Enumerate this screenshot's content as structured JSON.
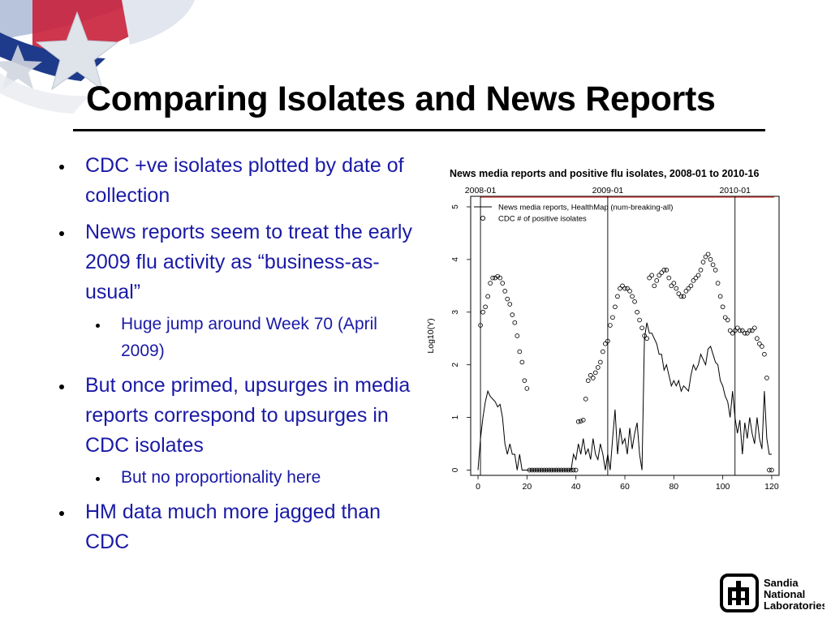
{
  "slide": {
    "title": "Comparing Isolates and News Reports",
    "bullets": [
      {
        "level": 1,
        "text": "CDC +ve isolates plotted by date of collection"
      },
      {
        "level": 1,
        "text": "News reports seem to treat the early 2009 flu activity as “business-as-usual”"
      },
      {
        "level": 2,
        "text": "Huge jump around Week 70 (April 2009)"
      },
      {
        "level": 1,
        "text": "But once primed, upsurges in media reports correspond to upsurges in CDC isolates"
      },
      {
        "level": 2,
        "text": "But no  proportionality here"
      },
      {
        "level": 1,
        "text": "HM data much more jagged than CDC"
      }
    ]
  },
  "logo": {
    "lines": [
      "Sandia",
      "National",
      "Laboratories"
    ]
  },
  "colors": {
    "bullet_text": "#1a1aa6",
    "title": "#000000",
    "chart_lines": "#000000",
    "chart_red_line": "#cc3333"
  },
  "chart_data": {
    "type": "line",
    "title": "News media reports and positive flu isolates, 2008-01 to 2010-16",
    "xlabel": "",
    "ylabel": "Log10(Y)",
    "xlim": [
      -3,
      123
    ],
    "ylim": [
      -0.1,
      5.2
    ],
    "x_ticks": [
      0,
      20,
      40,
      60,
      80,
      100,
      120
    ],
    "y_ticks": [
      0,
      1,
      2,
      3,
      4,
      5
    ],
    "grid": false,
    "legend_position": "top-left",
    "date_markers": [
      {
        "label": "2008-01",
        "x": 1
      },
      {
        "label": "2009-01",
        "x": 53
      },
      {
        "label": "2010-01",
        "x": 105
      }
    ],
    "series": [
      {
        "name": "News media reports, HealthMap (num-breaking-all)",
        "style": "line",
        "x": [
          0,
          1,
          2,
          3,
          4,
          5,
          6,
          7,
          8,
          9,
          10,
          11,
          12,
          13,
          14,
          15,
          16,
          17,
          18,
          19,
          20,
          21,
          22,
          23,
          24,
          25,
          26,
          27,
          28,
          29,
          30,
          31,
          32,
          33,
          34,
          35,
          36,
          37,
          38,
          39,
          40,
          41,
          42,
          43,
          44,
          45,
          46,
          47,
          48,
          49,
          50,
          51,
          52,
          53,
          54,
          55,
          56,
          57,
          58,
          59,
          60,
          61,
          62,
          63,
          64,
          65,
          66,
          67,
          68,
          69,
          70,
          71,
          72,
          73,
          74,
          75,
          76,
          77,
          78,
          79,
          80,
          81,
          82,
          83,
          84,
          85,
          86,
          87,
          88,
          89,
          90,
          91,
          92,
          93,
          94,
          95,
          96,
          97,
          98,
          99,
          100,
          101,
          102,
          103,
          104,
          105,
          106,
          107,
          108,
          109,
          110,
          111,
          112,
          113,
          114,
          115,
          116,
          117,
          118,
          119,
          120
        ],
        "values": [
          0,
          0.6,
          1.0,
          1.3,
          1.5,
          1.4,
          1.35,
          1.3,
          1.2,
          1.25,
          1.0,
          0.5,
          0.3,
          0.5,
          0.3,
          0.3,
          0.0,
          0.3,
          0.0,
          0.0,
          0.0,
          0.0,
          0.0,
          0.0,
          0.0,
          0.0,
          0.0,
          0.0,
          0.0,
          0.0,
          0.0,
          0.0,
          0.0,
          0.0,
          0.0,
          0.0,
          0.0,
          0.0,
          0.0,
          0.3,
          0.2,
          0.5,
          0.3,
          0.6,
          0.3,
          0.4,
          0.2,
          0.6,
          0.3,
          0.2,
          0.5,
          0.3,
          0.0,
          0.3,
          0.0,
          0.6,
          1.15,
          0.3,
          0.8,
          0.5,
          0.6,
          0.3,
          0.8,
          0.4,
          0.7,
          0.9,
          0.3,
          0.0,
          2.5,
          2.8,
          2.6,
          2.6,
          2.5,
          2.4,
          2.2,
          2.2,
          1.9,
          2.0,
          1.8,
          1.6,
          1.7,
          1.6,
          1.7,
          1.5,
          1.6,
          1.55,
          1.5,
          1.8,
          2.0,
          1.9,
          2.0,
          2.2,
          2.1,
          2.0,
          2.3,
          2.35,
          2.2,
          2.05,
          2.0,
          1.7,
          1.6,
          1.4,
          1.3,
          1.0,
          1.5,
          1.0,
          0.7,
          0.95,
          0.3,
          0.9,
          0.6,
          1.0,
          0.7,
          0.5,
          1.0,
          0.6,
          0.4,
          1.5,
          0.6,
          0.3,
          0.3
        ]
      },
      {
        "name": "CDC # of positive isolates",
        "style": "points",
        "x": [
          1,
          2,
          3,
          4,
          5,
          6,
          7,
          8,
          9,
          10,
          11,
          12,
          13,
          14,
          15,
          16,
          17,
          18,
          19,
          20,
          21,
          22,
          23,
          24,
          25,
          26,
          27,
          28,
          29,
          30,
          31,
          32,
          33,
          34,
          35,
          36,
          37,
          38,
          39,
          40,
          41,
          42,
          43,
          44,
          45,
          46,
          47,
          48,
          49,
          50,
          51,
          52,
          53,
          54,
          55,
          56,
          57,
          58,
          59,
          60,
          61,
          62,
          63,
          64,
          65,
          66,
          67,
          68,
          69,
          70,
          71,
          72,
          73,
          74,
          75,
          76,
          77,
          78,
          79,
          80,
          81,
          82,
          83,
          84,
          85,
          86,
          87,
          88,
          89,
          90,
          91,
          92,
          93,
          94,
          95,
          96,
          97,
          98,
          99,
          100,
          101,
          102,
          103,
          104,
          105,
          106,
          107,
          108,
          109,
          110,
          111,
          112,
          113,
          114,
          115,
          116,
          117,
          118,
          119,
          120
        ],
        "values": [
          2.75,
          3.0,
          3.1,
          3.3,
          3.55,
          3.65,
          3.65,
          3.68,
          3.65,
          3.55,
          3.4,
          3.25,
          3.15,
          2.95,
          2.8,
          2.55,
          2.25,
          2.05,
          1.7,
          1.55,
          0.0,
          0.0,
          0.0,
          0.0,
          0.0,
          0.0,
          0.0,
          0.0,
          0.0,
          0.0,
          0.0,
          0.0,
          0.0,
          0.0,
          0.0,
          0.0,
          0.0,
          0.0,
          0.0,
          0.0,
          0.92,
          0.93,
          0.95,
          1.35,
          1.7,
          1.8,
          1.75,
          1.85,
          1.95,
          2.05,
          2.25,
          2.4,
          2.45,
          2.75,
          2.9,
          3.1,
          3.3,
          3.45,
          3.5,
          3.45,
          3.45,
          3.4,
          3.3,
          3.2,
          3.0,
          2.85,
          2.7,
          2.55,
          2.5,
          3.65,
          3.7,
          3.5,
          3.6,
          3.7,
          3.75,
          3.8,
          3.8,
          3.65,
          3.5,
          3.55,
          3.45,
          3.35,
          3.3,
          3.3,
          3.4,
          3.45,
          3.5,
          3.6,
          3.65,
          3.7,
          3.8,
          3.95,
          4.05,
          4.1,
          4.0,
          3.9,
          3.8,
          3.55,
          3.3,
          3.1,
          2.9,
          2.85,
          2.65,
          2.6,
          2.65,
          2.7,
          2.65,
          2.65,
          2.6,
          2.6,
          2.65,
          2.65,
          2.7,
          2.5,
          2.4,
          2.35,
          2.2,
          1.75,
          0.0,
          0.0
        ]
      }
    ]
  }
}
